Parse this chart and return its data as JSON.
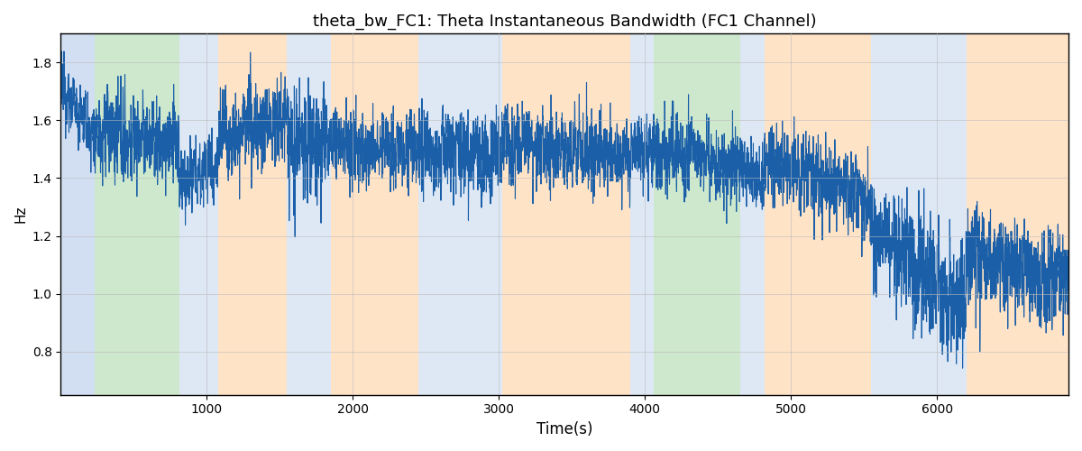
{
  "title": "theta_bw_FC1: Theta Instantaneous Bandwidth (FC1 Channel)",
  "xlabel": "Time(s)",
  "ylabel": "Hz",
  "xlim": [
    0,
    6900
  ],
  "ylim": [
    0.65,
    1.9
  ],
  "yticks": [
    0.8,
    1.0,
    1.2,
    1.4,
    1.6,
    1.8
  ],
  "xticks": [
    1000,
    2000,
    3000,
    4000,
    5000,
    6000
  ],
  "line_color": "#1a5fa8",
  "line_width": 0.8,
  "background_color": "#ffffff",
  "grid_color": "#bbbbbb",
  "regions": [
    {
      "xmin": 0,
      "xmax": 230,
      "color": "#aec6e8",
      "alpha": 0.55
    },
    {
      "xmin": 230,
      "xmax": 810,
      "color": "#90cc90",
      "alpha": 0.45
    },
    {
      "xmin": 810,
      "xmax": 1080,
      "color": "#aec6e8",
      "alpha": 0.4
    },
    {
      "xmin": 1080,
      "xmax": 1550,
      "color": "#ffcc99",
      "alpha": 0.55
    },
    {
      "xmin": 1550,
      "xmax": 1850,
      "color": "#aec6e8",
      "alpha": 0.4
    },
    {
      "xmin": 1850,
      "xmax": 2450,
      "color": "#ffcc99",
      "alpha": 0.55
    },
    {
      "xmin": 2450,
      "xmax": 3020,
      "color": "#aec6e8",
      "alpha": 0.4
    },
    {
      "xmin": 3020,
      "xmax": 3900,
      "color": "#ffcc99",
      "alpha": 0.55
    },
    {
      "xmin": 3900,
      "xmax": 4060,
      "color": "#aec6e8",
      "alpha": 0.4
    },
    {
      "xmin": 4060,
      "xmax": 4650,
      "color": "#90cc90",
      "alpha": 0.45
    },
    {
      "xmin": 4650,
      "xmax": 4820,
      "color": "#aec6e8",
      "alpha": 0.4
    },
    {
      "xmin": 4820,
      "xmax": 5550,
      "color": "#ffcc99",
      "alpha": 0.55
    },
    {
      "xmin": 5550,
      "xmax": 6200,
      "color": "#aec6e8",
      "alpha": 0.4
    },
    {
      "xmin": 6200,
      "xmax": 6900,
      "color": "#ffcc99",
      "alpha": 0.55
    }
  ],
  "seed": 12345,
  "n_points": 6900
}
